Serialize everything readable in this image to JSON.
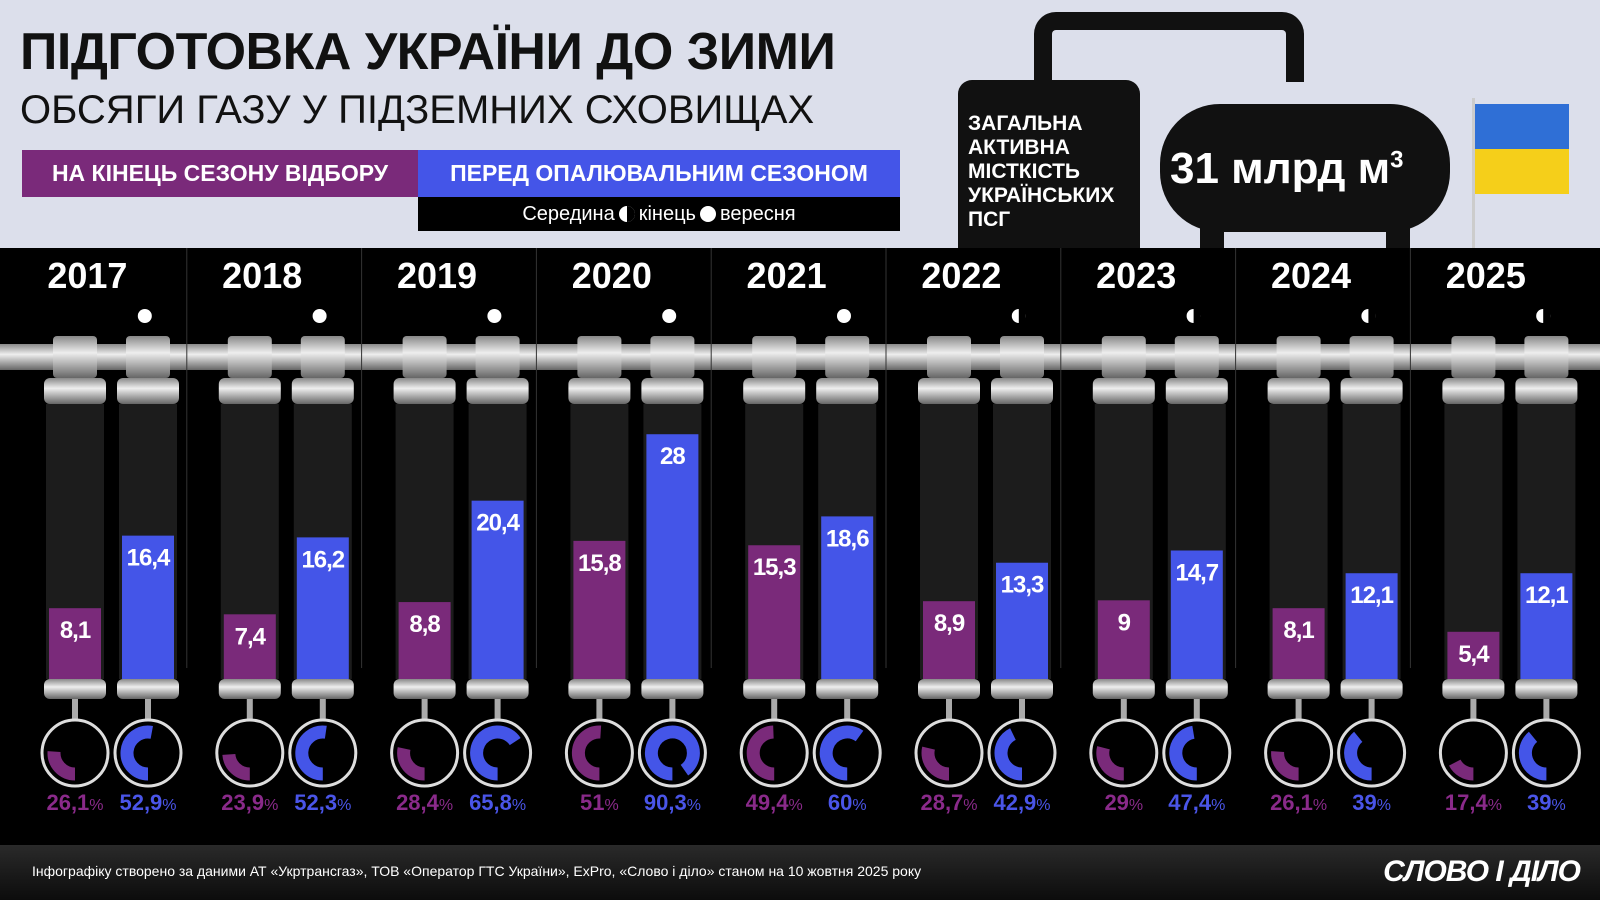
{
  "header": {
    "title": "ПІДГОТОВКА УКРАЇНИ ДО ЗИМИ",
    "subtitle": "ОБСЯГИ ГАЗУ У ПІДЗЕМНИХ СХОВИЩАХ"
  },
  "legend": {
    "end_injection": "НА КІНЕЦЬ СЕЗОНУ ВІДБОРУ",
    "pre_heating": "ПЕРЕД ОПАЛЮВАЛЬНИМ СЕЗОНОМ",
    "mid_label": "Середина",
    "end_label": "кінець",
    "month_label": "вересня"
  },
  "capacity": {
    "label": "ЗАГАЛЬНА АКТИВНА МІСТКІСТЬ УКРАЇНСЬКИХ ПСГ",
    "value": "31 млрд м",
    "unit_sup": "3"
  },
  "colors": {
    "end_injection": "#7a2a7a",
    "pre_heating": "#4455e8",
    "end_pct_text": "#8a2a8a",
    "pre_pct_text": "#4a55e8"
  },
  "chart_data": {
    "type": "bar",
    "categories": [
      "2017",
      "2018",
      "2019",
      "2020",
      "2021",
      "2022",
      "2023",
      "2024",
      "2025"
    ],
    "ylim": [
      0,
      31
    ],
    "series": [
      {
        "name": "НА КІНЕЦЬ СЕЗОНУ ВІДБОРУ",
        "values": [
          8.1,
          7.4,
          8.8,
          15.8,
          15.3,
          8.9,
          9,
          8.1,
          5.4
        ],
        "percent": [
          26.1,
          23.9,
          28.4,
          51,
          49.4,
          28.7,
          29,
          26.1,
          17.4
        ]
      },
      {
        "name": "ПЕРЕД ОПАЛЮВАЛЬНИМ СЕЗОНОМ",
        "values": [
          16.4,
          16.2,
          20.4,
          28,
          18.6,
          13.3,
          14.7,
          12.1,
          12.1
        ],
        "percent": [
          52.9,
          52.3,
          65.8,
          90.3,
          60,
          42.9,
          47.4,
          39,
          39
        ]
      }
    ],
    "measured_at": [
      "end",
      "end",
      "end",
      "end",
      "end",
      "mid",
      "mid",
      "mid",
      "mid"
    ]
  },
  "footer": {
    "source": "Інфографіку створено за даними АТ «Укртрансгаз», ТОВ «Оператор ГТС України», ExPro, «Слово і діло» станом на 10 жовтня 2025 року",
    "logo": "СЛОВО І ДІЛО"
  }
}
